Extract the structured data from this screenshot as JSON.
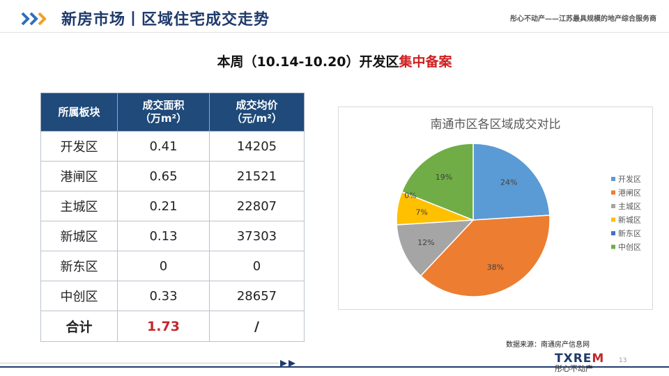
{
  "header": {
    "title": "新房市场丨区域住宅成交走势",
    "tagline": "彤心不动产——江苏最具规模的地产综合服务商"
  },
  "subtitle": {
    "prefix": "本周（10.14-10.20）开发区",
    "highlight": "集中备案"
  },
  "table": {
    "headers": [
      {
        "line1": "所属板块",
        "line2": ""
      },
      {
        "line1": "成交面积",
        "line2": "（万m²）"
      },
      {
        "line1": "成交均价",
        "line2": "（元/m²）"
      }
    ],
    "rows": [
      {
        "district": "开发区",
        "area": "0.41",
        "price": "14205"
      },
      {
        "district": "港闸区",
        "area": "0.65",
        "price": "21521"
      },
      {
        "district": "主城区",
        "area": "0.21",
        "price": "22807"
      },
      {
        "district": "新城区",
        "area": "0.13",
        "price": "37303"
      },
      {
        "district": "新东区",
        "area": "0",
        "price": "0"
      },
      {
        "district": "中创区",
        "area": "0.33",
        "price": "28657"
      }
    ],
    "total": {
      "label": "合计",
      "area": "1.73",
      "price": "/"
    },
    "colors": {
      "header_bg": "#1f4a7a",
      "total_value": "#c0282c"
    }
  },
  "chart_data": {
    "type": "pie",
    "title": "南通市区各区域成交对比",
    "categories": [
      "开发区",
      "港闸区",
      "主城区",
      "新城区",
      "新东区",
      "中创区"
    ],
    "values": [
      24,
      38,
      12,
      7,
      0,
      19
    ],
    "labels": [
      "24%",
      "38%",
      "12%",
      "7%",
      "0%",
      "19%"
    ],
    "colors": [
      "#5b9bd5",
      "#ed7d31",
      "#a5a5a5",
      "#ffc000",
      "#4472c4",
      "#70ad47"
    ],
    "legend": "right"
  },
  "source": "数据来源：南通房产信息网",
  "footer": {
    "brand_logo_a": "TXRE",
    "brand_logo_b": "M",
    "brand_name": "彤心不动产",
    "page_number": "13"
  }
}
